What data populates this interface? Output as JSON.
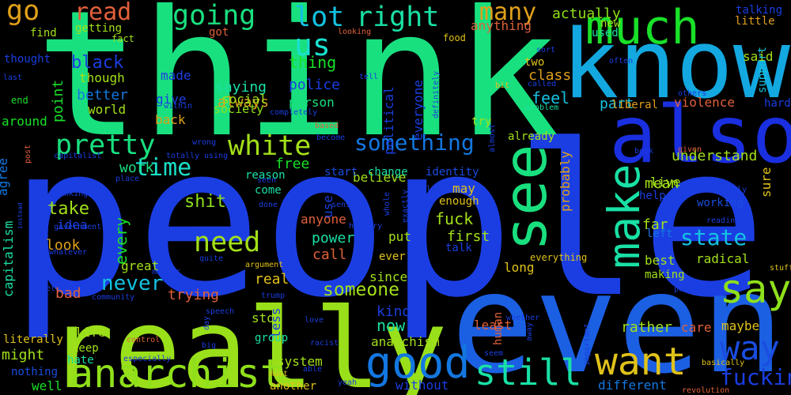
{
  "background": "#000000",
  "words": [
    {
      "id": "people",
      "text": "people",
      "color": "#1b3ee3"
    },
    {
      "id": "think",
      "text": "think",
      "color": "#19e07f"
    },
    {
      "id": "even",
      "text": "even",
      "color": "#1b5fe3"
    },
    {
      "id": "know",
      "text": "know",
      "color": "#13a8e0"
    },
    {
      "id": "really",
      "text": "really",
      "color": "#9ae01a"
    },
    {
      "id": "also",
      "text": "also",
      "color": "#1a2fe0"
    },
    {
      "id": "much",
      "text": "much",
      "color": "#19e029"
    },
    {
      "id": "see",
      "text": "see",
      "color": "#19e07f"
    },
    {
      "id": "good",
      "text": "good",
      "color": "#1377e0"
    },
    {
      "id": "anarchist",
      "text": "anarchist",
      "color": "#8fe01a"
    },
    {
      "id": "still",
      "text": "still",
      "color": "#19e0a5"
    },
    {
      "id": "want",
      "text": "want",
      "color": "#e0c21a"
    },
    {
      "id": "make",
      "text": "make",
      "color": "#19e0a5"
    },
    {
      "id": "say",
      "text": "say",
      "color": "#8fe01a"
    },
    {
      "id": "way",
      "text": "way",
      "color": "#1a4de0"
    },
    {
      "id": "us",
      "text": "us",
      "color": "#19e0d0"
    },
    {
      "id": "lot",
      "text": "lot",
      "color": "#13c2e0"
    },
    {
      "id": "right",
      "text": "right",
      "color": "#19e0a5"
    },
    {
      "id": "going",
      "text": "going",
      "color": "#19e07f"
    },
    {
      "id": "read",
      "text": "read",
      "color": "#e0603a"
    },
    {
      "id": "go",
      "text": "go",
      "color": "#e0a01a"
    },
    {
      "id": "many",
      "text": "many",
      "color": "#e0a01a"
    },
    {
      "id": "white",
      "text": "white",
      "color": "#a3e019"
    },
    {
      "id": "pretty",
      "text": "pretty",
      "color": "#19e07f"
    },
    {
      "id": "time",
      "text": "time",
      "color": "#19e0c8"
    },
    {
      "id": "need",
      "text": "need",
      "color": "#a3e019"
    },
    {
      "id": "something",
      "text": "something",
      "color": "#1377e0"
    },
    {
      "id": "state",
      "text": "state",
      "color": "#13c2e0"
    },
    {
      "id": "fucking",
      "text": "fucking",
      "color": "#1a3ee0"
    },
    {
      "id": "black",
      "text": "black",
      "color": "#1a3ee0"
    },
    {
      "id": "never",
      "text": "never",
      "color": "#13c2e0"
    },
    {
      "id": "someone",
      "text": "someone",
      "color": "#a3e019"
    },
    {
      "id": "shit",
      "text": "shit",
      "color": "#8fe01a"
    },
    {
      "id": "actually",
      "text": "actually",
      "color": "#8fe01a"
    },
    {
      "id": "thing",
      "text": "thing",
      "color": "#19e029"
    },
    {
      "id": "saying",
      "text": "saying",
      "color": "#19e0a5"
    },
    {
      "id": "police",
      "text": "police",
      "color": "#1a3ee0"
    },
    {
      "id": "always",
      "text": "always",
      "color": "#e0a01a"
    },
    {
      "id": "social",
      "text": "social",
      "color": "#a3e019"
    },
    {
      "id": "society",
      "text": "society",
      "color": "#8fe01a"
    },
    {
      "id": "person",
      "text": "person",
      "color": "#19e07f"
    },
    {
      "id": "better",
      "text": "better",
      "color": "#1377e0"
    },
    {
      "id": "though",
      "text": "though",
      "color": "#a3e019"
    },
    {
      "id": "made",
      "text": "made",
      "color": "#1a3ee0"
    },
    {
      "id": "give",
      "text": "give",
      "color": "#1a3ee0"
    },
    {
      "id": "world",
      "text": "world",
      "color": "#a3e019"
    },
    {
      "id": "back",
      "text": "back",
      "color": "#e0a01a"
    },
    {
      "id": "feel",
      "text": "feel",
      "color": "#13c2e0"
    },
    {
      "id": "part",
      "text": "part",
      "color": "#13c2e0"
    },
    {
      "id": "liberal",
      "text": "liberal",
      "color": "#e0a01a"
    },
    {
      "id": "violence",
      "text": "violence",
      "color": "#e0603a"
    },
    {
      "id": "class",
      "text": "class",
      "color": "#e0a01a"
    },
    {
      "id": "political",
      "text": "political",
      "color": "#1a3ee0"
    },
    {
      "id": "everyone",
      "text": "everyone",
      "color": "#1a3ee0"
    },
    {
      "id": "point",
      "text": "point",
      "color": "#19e029"
    },
    {
      "id": "work",
      "text": "work",
      "color": "#19e07f"
    },
    {
      "id": "free",
      "text": "free",
      "color": "#19e029"
    },
    {
      "id": "take",
      "text": "take",
      "color": "#a3e019"
    },
    {
      "id": "every",
      "text": "every",
      "color": "#19e029"
    },
    {
      "id": "look",
      "text": "look",
      "color": "#e0a01a"
    },
    {
      "id": "idea",
      "text": "idea",
      "color": "#1a3ee0"
    },
    {
      "id": "power",
      "text": "power",
      "color": "#19e0a5"
    },
    {
      "id": "call",
      "text": "call",
      "color": "#e0603a"
    },
    {
      "id": "fuck",
      "text": "fuck",
      "color": "#a3e019"
    },
    {
      "id": "first",
      "text": "first",
      "color": "#a3e019"
    },
    {
      "id": "anyone",
      "text": "anyone",
      "color": "#e0603a"
    },
    {
      "id": "use",
      "text": "use",
      "color": "#1a3ee0"
    },
    {
      "id": "believe",
      "text": "believe",
      "color": "#a3e019"
    },
    {
      "id": "may",
      "text": "may",
      "color": "#e0c21a"
    },
    {
      "id": "enough",
      "text": "enough",
      "color": "#e0c21a"
    },
    {
      "id": "probably",
      "text": "probably",
      "color": "#e0a01a"
    },
    {
      "id": "understand",
      "text": "understand",
      "color": "#a3e019"
    },
    {
      "id": "mean",
      "text": "mean",
      "color": "#a3e019"
    },
    {
      "id": "live",
      "text": "live",
      "color": "#a3e019"
    },
    {
      "id": "far",
      "text": "far",
      "color": "#a3e019"
    },
    {
      "id": "working",
      "text": "working",
      "color": "#1a4de0"
    },
    {
      "id": "real",
      "text": "real",
      "color": "#e0c21a"
    },
    {
      "id": "trying",
      "text": "trying",
      "color": "#e0603a"
    },
    {
      "id": "great",
      "text": "great",
      "color": "#a3e019"
    },
    {
      "id": "bad",
      "text": "bad",
      "color": "#e0603a"
    },
    {
      "id": "might",
      "text": "might",
      "color": "#a3e019"
    },
    {
      "id": "life",
      "text": "life",
      "color": "#a3e019"
    },
    {
      "id": "keep",
      "text": "keep",
      "color": "#a3e019"
    },
    {
      "id": "hate",
      "text": "hate",
      "color": "#19e0a5"
    },
    {
      "id": "nothing",
      "text": "nothing",
      "color": "#1a4de0"
    },
    {
      "id": "well",
      "text": "well",
      "color": "#19e029"
    },
    {
      "id": "another",
      "text": "another",
      "color": "#e0c21a"
    },
    {
      "id": "system",
      "text": "system",
      "color": "#a3e019"
    },
    {
      "id": "without",
      "text": "without",
      "color": "#1a3ee0"
    },
    {
      "id": "anarchism",
      "text": "anarchism",
      "color": "#a3e019"
    },
    {
      "id": "now",
      "text": "now",
      "color": "#19e0a5"
    },
    {
      "id": "kind",
      "text": "kind",
      "color": "#1a3ee0"
    },
    {
      "id": "since",
      "text": "since",
      "color": "#a3e019"
    },
    {
      "id": "long",
      "text": "long",
      "color": "#e0c21a"
    },
    {
      "id": "least",
      "text": "least",
      "color": "#e0603a"
    },
    {
      "id": "human",
      "text": "human",
      "color": "#e0603a"
    },
    {
      "id": "rather",
      "text": "rather",
      "color": "#a3e019"
    },
    {
      "id": "care",
      "text": "care",
      "color": "#e0603a"
    },
    {
      "id": "maybe",
      "text": "maybe",
      "color": "#e0c21a"
    },
    {
      "id": "different",
      "text": "different",
      "color": "#1377e0"
    },
    {
      "id": "best",
      "text": "best",
      "color": "#a3e019"
    },
    {
      "id": "making",
      "text": "making",
      "color": "#a3e019"
    },
    {
      "id": "radical",
      "text": "radical",
      "color": "#a3e019"
    },
    {
      "id": "left",
      "text": "left",
      "color": "#1377e0"
    },
    {
      "id": "sure",
      "text": "sure",
      "color": "#e0c21a"
    },
    {
      "id": "hard",
      "text": "hard",
      "color": "#1a3ee0"
    },
    {
      "id": "said",
      "text": "said",
      "color": "#a3e019"
    },
    {
      "id": "talking",
      "text": "talking",
      "color": "#1a3ee0"
    },
    {
      "id": "little",
      "text": "little",
      "color": "#e0a01a"
    },
    {
      "id": "support",
      "text": "support",
      "color": "#13c2e0"
    },
    {
      "id": "used",
      "text": "used",
      "color": "#19e0a5"
    },
    {
      "id": "anything",
      "text": "anything",
      "color": "#e0603a"
    },
    {
      "id": "getting",
      "text": "getting",
      "color": "#a3e019"
    },
    {
      "id": "find",
      "text": "find",
      "color": "#a3e019"
    },
    {
      "id": "thought",
      "text": "thought",
      "color": "#1a3ee0"
    },
    {
      "id": "around",
      "text": "around",
      "color": "#19e029"
    },
    {
      "id": "agree",
      "text": "agree",
      "color": "#1377e0"
    },
    {
      "id": "capitalism",
      "text": "capitalism",
      "color": "#19e0a5"
    },
    {
      "id": "literally",
      "text": "literally",
      "color": "#e0c21a"
    },
    {
      "id": "change",
      "text": "change",
      "color": "#19e0a5"
    },
    {
      "id": "come",
      "text": "come",
      "color": "#19e0a5"
    },
    {
      "id": "stop",
      "text": "stop",
      "color": "#a3e019"
    },
    {
      "id": "less",
      "text": "less",
      "color": "#1a3ee0"
    },
    {
      "id": "group",
      "text": "group",
      "color": "#19e0a5"
    },
    {
      "id": "put",
      "text": "put",
      "color": "#a3e019"
    },
    {
      "id": "ever",
      "text": "ever",
      "color": "#e0c21a"
    },
    {
      "id": "talk",
      "text": "talk",
      "color": "#1a3ee0"
    },
    {
      "id": "try",
      "text": "try",
      "color": "#a3e019"
    },
    {
      "id": "already",
      "text": "already",
      "color": "#a3e019"
    },
    {
      "id": "start",
      "text": "start",
      "color": "#1a4de0"
    },
    {
      "id": "reason",
      "text": "reason",
      "color": "#19e0a5"
    },
    {
      "id": "identity",
      "text": "identity",
      "color": "#1a4de0"
    },
    {
      "id": "everything",
      "text": "everything",
      "color": "#e0c21a"
    },
    {
      "id": "help",
      "text": "help",
      "color": "#1a3ee0"
    },
    {
      "id": "new",
      "text": "new",
      "color": "#a3e019"
    },
    {
      "id": "two",
      "text": "two",
      "color": "#e0c21a"
    },
    {
      "id": "got",
      "text": "got",
      "color": "#e0603a"
    },
    {
      "id": "fact",
      "text": "fact",
      "color": "#a3e019"
    },
    {
      "id": "food",
      "text": "food",
      "color": "#e0c21a"
    },
    {
      "id": "end",
      "text": "end",
      "color": "#19e029"
    },
    {
      "id": "last",
      "text": "last",
      "color": "#1a3ee0"
    },
    {
      "id": "often",
      "text": "often",
      "color": "#1a3ee0"
    },
    {
      "id": "sort",
      "text": "sort",
      "color": "#1a3ee0"
    },
    {
      "id": "tell",
      "text": "tell",
      "color": "#1a3ee0"
    },
    {
      "id": "bit",
      "text": "bit",
      "color": "#e0c21a"
    },
    {
      "id": "called",
      "text": "called",
      "color": "#1a3ee0"
    },
    {
      "id": "problem",
      "text": "problem",
      "color": "#19e0a5"
    },
    {
      "id": "others",
      "text": "others",
      "color": "#1a3ee0"
    },
    {
      "id": "looking",
      "text": "looking",
      "color": "#e0603a"
    },
    {
      "id": "within",
      "text": "within",
      "color": "#1a3ee0"
    },
    {
      "id": "based",
      "text": "based",
      "color": "#e0603a"
    },
    {
      "id": "completely",
      "text": "completely",
      "color": "#1a3ee0"
    },
    {
      "id": "definitely",
      "text": "definitely",
      "color": "#1a3ee0"
    },
    {
      "id": "almost",
      "text": "almost",
      "color": "#1a3ee0"
    },
    {
      "id": "become",
      "text": "become",
      "color": "#1a3ee0"
    },
    {
      "id": "wrong",
      "text": "wrong",
      "color": "#1a3ee0"
    },
    {
      "id": "totally",
      "text": "totally",
      "color": "#1a3ee0"
    },
    {
      "id": "using",
      "text": "using",
      "color": "#1a3ee0"
    },
    {
      "id": "capitalist",
      "text": "capitalist",
      "color": "#1a3ee0"
    },
    {
      "id": "post",
      "text": "post",
      "color": "#e0603a"
    },
    {
      "id": "book",
      "text": "book",
      "color": "#1a3ee0"
    },
    {
      "id": "given",
      "text": "given",
      "color": "#e0603a"
    },
    {
      "id": "place",
      "text": "place",
      "color": "#1a3ee0"
    },
    {
      "id": "seen",
      "text": "seen",
      "color": "#1a3ee0"
    },
    {
      "id": "thinking",
      "text": "thinking",
      "color": "#1a3ee0"
    },
    {
      "id": "instead",
      "text": "instead",
      "color": "#1a3ee0"
    },
    {
      "id": "government",
      "text": "government",
      "color": "#1a3ee0"
    },
    {
      "id": "whatever",
      "text": "whatever",
      "color": "#1a3ee0"
    },
    {
      "id": "matter",
      "text": "matter",
      "color": "#1a3ee0"
    },
    {
      "id": "quite",
      "text": "quite",
      "color": "#1a3ee0"
    },
    {
      "id": "argument",
      "text": "argument",
      "color": "#e0c21a"
    },
    {
      "id": "done",
      "text": "done",
      "color": "#1a3ee0"
    },
    {
      "id": "sense",
      "text": "sense",
      "color": "#1a3ee0"
    },
    {
      "id": "history",
      "text": "history",
      "color": "#1a3ee0"
    },
    {
      "id": "whole",
      "text": "whole",
      "color": "#1a3ee0"
    },
    {
      "id": "exactly",
      "text": "exactly",
      "color": "#1a3ee0"
    },
    {
      "id": "else",
      "text": "else",
      "color": "#1a3ee0"
    },
    {
      "id": "reading",
      "text": "reading",
      "color": "#1a3ee0"
    },
    {
      "id": "simply",
      "text": "simply",
      "color": "#1a3ee0"
    },
    {
      "id": "stuff",
      "text": "stuff",
      "color": "#e0c21a"
    },
    {
      "id": "poor",
      "text": "poor",
      "color": "#1a3ee0"
    },
    {
      "id": "basically",
      "text": "basically",
      "color": "#e0c21a"
    },
    {
      "id": "revolution",
      "text": "revolution",
      "color": "#e0603a"
    },
    {
      "id": "important",
      "text": "important",
      "color": "#1a3ee0"
    },
    {
      "id": "away",
      "text": "away",
      "color": "#1a3ee0"
    },
    {
      "id": "seem",
      "text": "seem",
      "color": "#1a3ee0"
    },
    {
      "id": "whether",
      "text": "whether",
      "color": "#1a3ee0"
    },
    {
      "id": "able",
      "text": "able",
      "color": "#1a3ee0"
    },
    {
      "id": "yeah",
      "text": "yeah",
      "color": "#1a3ee0"
    },
    {
      "id": "racist",
      "text": "racist",
      "color": "#1a3ee0"
    },
    {
      "id": "must",
      "text": "must",
      "color": "#e0c21a"
    },
    {
      "id": "big",
      "text": "big",
      "color": "#1a3ee0"
    },
    {
      "id": "day",
      "text": "day",
      "color": "#1a3ee0"
    },
    {
      "id": "control",
      "text": "control",
      "color": "#e0603a"
    },
    {
      "id": "especially",
      "text": "especially",
      "color": "#1a3ee0"
    },
    {
      "id": "community",
      "text": "community",
      "color": "#1a3ee0"
    },
    {
      "id": "trump",
      "text": "trump",
      "color": "#1a3ee0"
    },
    {
      "id": "speech",
      "text": "speech",
      "color": "#1a3ee0"
    },
    {
      "id": "love",
      "text": "love",
      "color": "#1a3ee0"
    },
    {
      "id": "let",
      "text": "let",
      "color": "#1a3ee0"
    }
  ]
}
